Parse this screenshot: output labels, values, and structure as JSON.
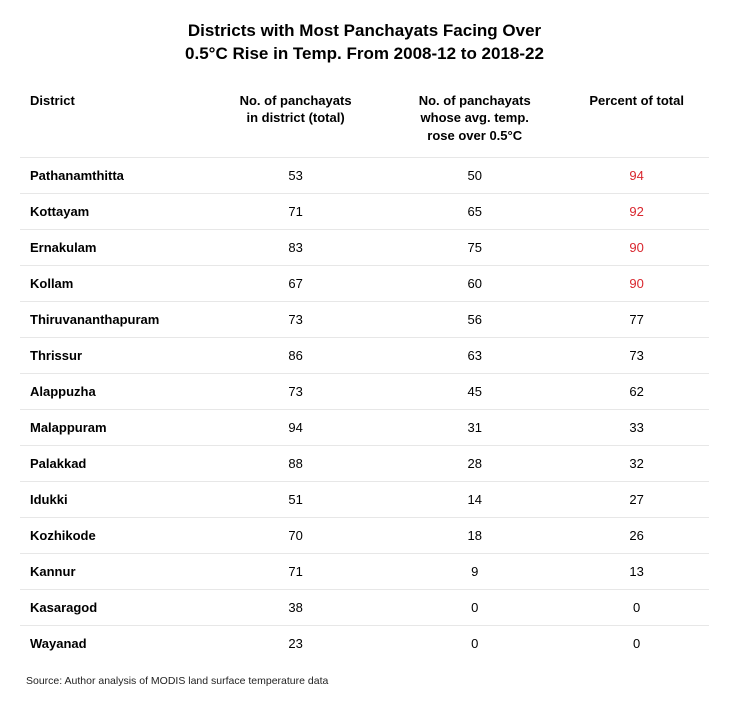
{
  "title_line1": "Districts with Most Panchayats Facing Over",
  "title_line2": "0.5°C Rise in Temp. From 2008-12 to 2018-22",
  "columns": {
    "c0": "District",
    "c1_l1": "No. of panchayats",
    "c1_l2": "in district (total)",
    "c2_l1": "No. of panchayats",
    "c2_l2": "whose avg. temp.",
    "c2_l3": "rose over 0.5°C",
    "c3": "Percent of total"
  },
  "highlight_color": "#d9262e",
  "background_color": "#ffffff",
  "border_color": "#e7e7e7",
  "text_color": "#000000",
  "highlight_threshold": 90,
  "font_sizes": {
    "title": 17,
    "header": 13,
    "body": 13,
    "source": 10.5
  },
  "rows": [
    {
      "district": "Pathanamthitta",
      "total": "53",
      "rose": "50",
      "pct": "94",
      "hl": true
    },
    {
      "district": "Kottayam",
      "total": "71",
      "rose": "65",
      "pct": "92",
      "hl": true
    },
    {
      "district": "Ernakulam",
      "total": "83",
      "rose": "75",
      "pct": "90",
      "hl": true
    },
    {
      "district": "Kollam",
      "total": "67",
      "rose": "60",
      "pct": "90",
      "hl": true
    },
    {
      "district": "Thiruvananthapuram",
      "total": "73",
      "rose": "56",
      "pct": "77",
      "hl": false
    },
    {
      "district": "Thrissur",
      "total": "86",
      "rose": "63",
      "pct": "73",
      "hl": false
    },
    {
      "district": "Alappuzha",
      "total": "73",
      "rose": "45",
      "pct": "62",
      "hl": false
    },
    {
      "district": "Malappuram",
      "total": "94",
      "rose": "31",
      "pct": "33",
      "hl": false
    },
    {
      "district": "Palakkad",
      "total": "88",
      "rose": "28",
      "pct": "32",
      "hl": false
    },
    {
      "district": "Idukki",
      "total": "51",
      "rose": "14",
      "pct": "27",
      "hl": false
    },
    {
      "district": "Kozhikode",
      "total": "70",
      "rose": "18",
      "pct": "26",
      "hl": false
    },
    {
      "district": "Kannur",
      "total": "71",
      "rose": "9",
      "pct": "13",
      "hl": false
    },
    {
      "district": "Kasaragod",
      "total": "38",
      "rose": "0",
      "pct": "0",
      "hl": false
    },
    {
      "district": "Wayanad",
      "total": "23",
      "rose": "0",
      "pct": "0",
      "hl": false
    }
  ],
  "source": "Source: Author analysis of MODIS land surface temperature data"
}
